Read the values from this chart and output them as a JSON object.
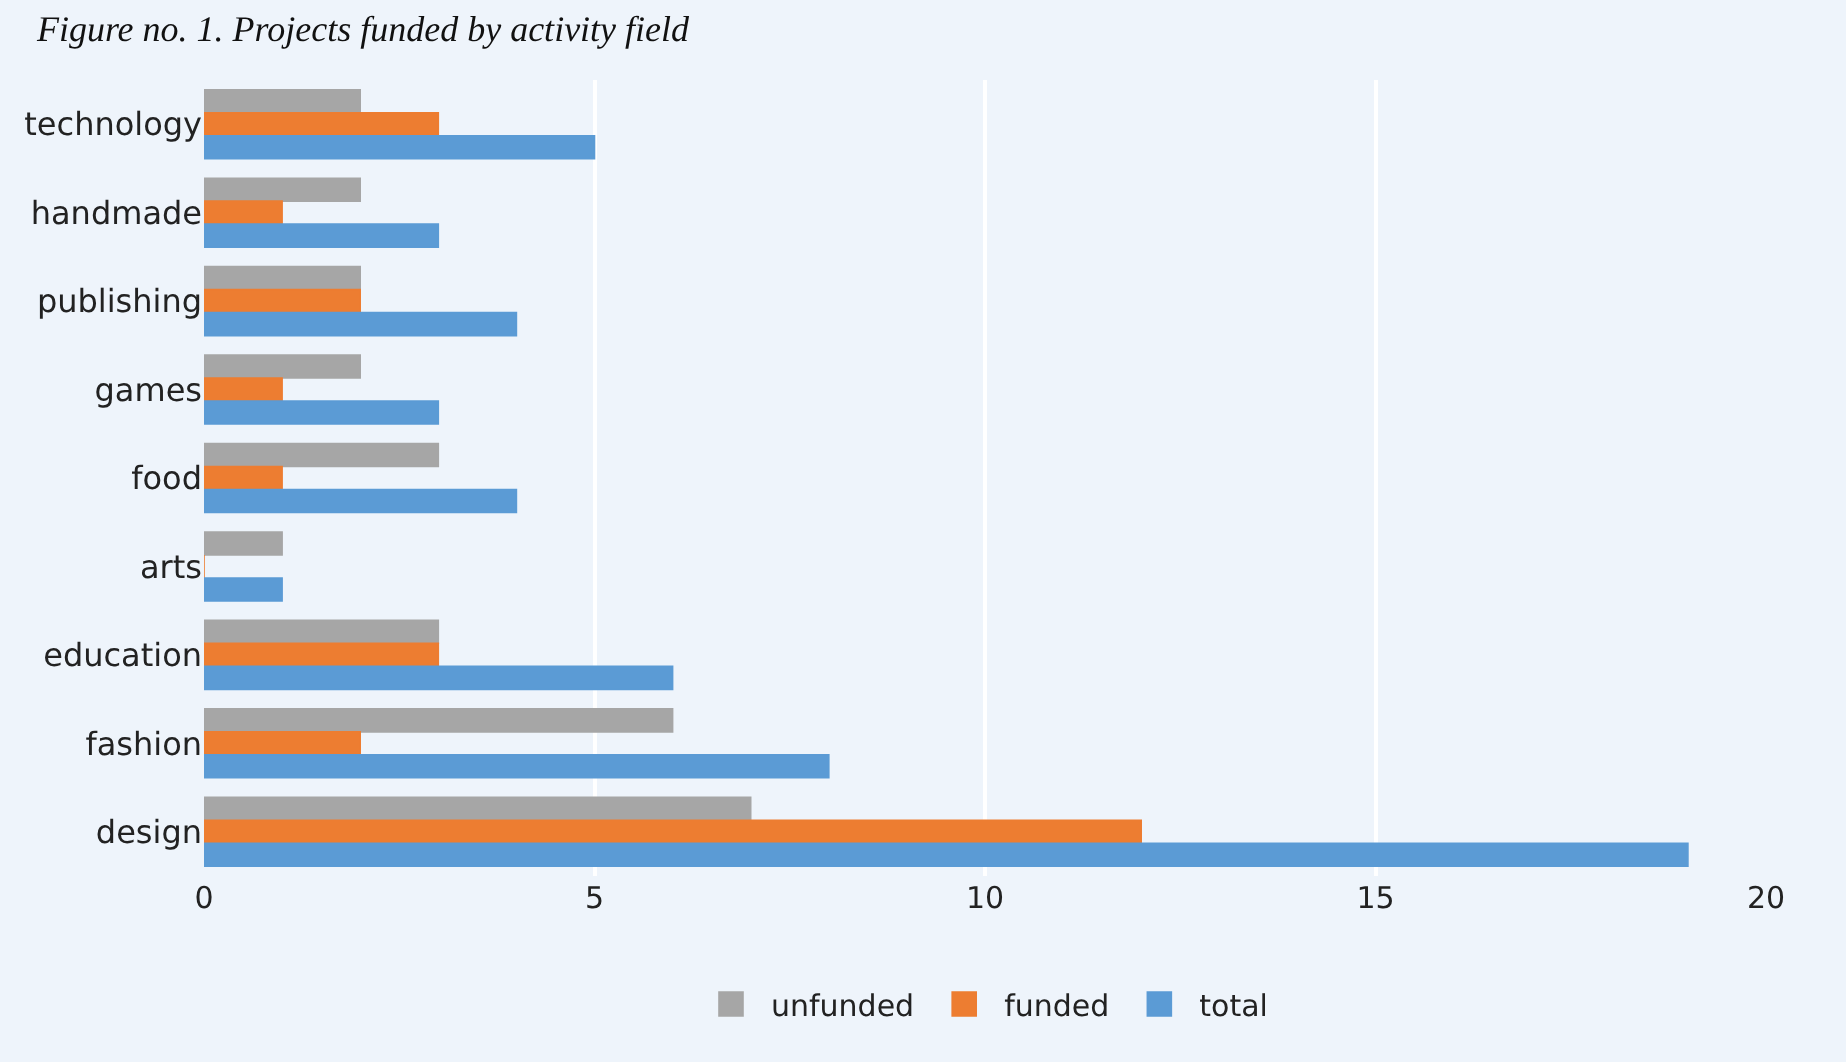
{
  "chart_data": {
    "type": "bar",
    "orientation": "horizontal",
    "title": "Figure no. 1. Projects funded by activity field",
    "categories": [
      "technology",
      "handmade",
      "publishing",
      "games",
      "food",
      "arts",
      "education",
      "fashion",
      "design"
    ],
    "series": [
      {
        "name": "unfunded",
        "color": "#a6a6a6",
        "values": [
          2,
          2,
          2,
          2,
          3,
          1,
          3,
          6,
          7
        ]
      },
      {
        "name": "funded",
        "color": "#ed7d31",
        "values": [
          3,
          1,
          2,
          1,
          1,
          0,
          3,
          2,
          12
        ]
      },
      {
        "name": "total",
        "color": "#5b9bd5",
        "values": [
          5,
          3,
          4,
          3,
          4,
          1,
          6,
          8,
          19
        ]
      }
    ],
    "xlim": [
      0,
      20
    ],
    "xticks": [
      0,
      5,
      10,
      15,
      20
    ],
    "grid": "x",
    "legend": "bottom"
  }
}
